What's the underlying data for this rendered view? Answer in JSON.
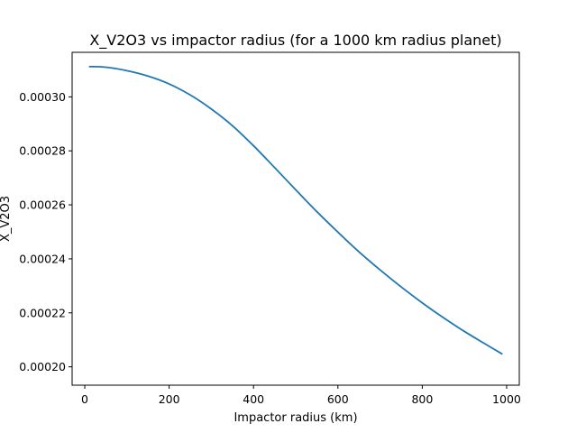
{
  "chart_data": {
    "type": "line",
    "title": "X_V2O3 vs impactor radius (for a 1000 km radius planet)",
    "xlabel": "Impactor radius (km)",
    "ylabel": "X_V2O3",
    "xlim": [
      -30,
      1030
    ],
    "ylim": [
      0.0001932,
      0.0003165
    ],
    "xticks": [
      0,
      200,
      400,
      600,
      800,
      1000
    ],
    "xtick_labels": [
      "0",
      "200",
      "400",
      "600",
      "800",
      "1000"
    ],
    "yticks": [
      0.0002,
      0.00022,
      0.00024,
      0.00026,
      0.00028,
      0.0003
    ],
    "ytick_labels": [
      "0.00020",
      "0.00022",
      "0.00024",
      "0.00026",
      "0.00028",
      "0.00030"
    ],
    "grid": false,
    "series": [
      {
        "color": "#1f77b4",
        "x": [
          10,
          50,
          100,
          150,
          200,
          250,
          300,
          350,
          400,
          450,
          500,
          550,
          600,
          650,
          700,
          750,
          800,
          850,
          900,
          950,
          990
        ],
        "y": [
          0.0003112,
          0.000311,
          0.0003097,
          0.0003077,
          0.0003048,
          0.0003007,
          0.0002955,
          0.0002893,
          0.0002819,
          0.0002738,
          0.0002656,
          0.0002575,
          0.0002499,
          0.0002426,
          0.0002359,
          0.0002296,
          0.0002237,
          0.0002182,
          0.0002131,
          0.0002084,
          0.0002047
        ]
      }
    ]
  }
}
